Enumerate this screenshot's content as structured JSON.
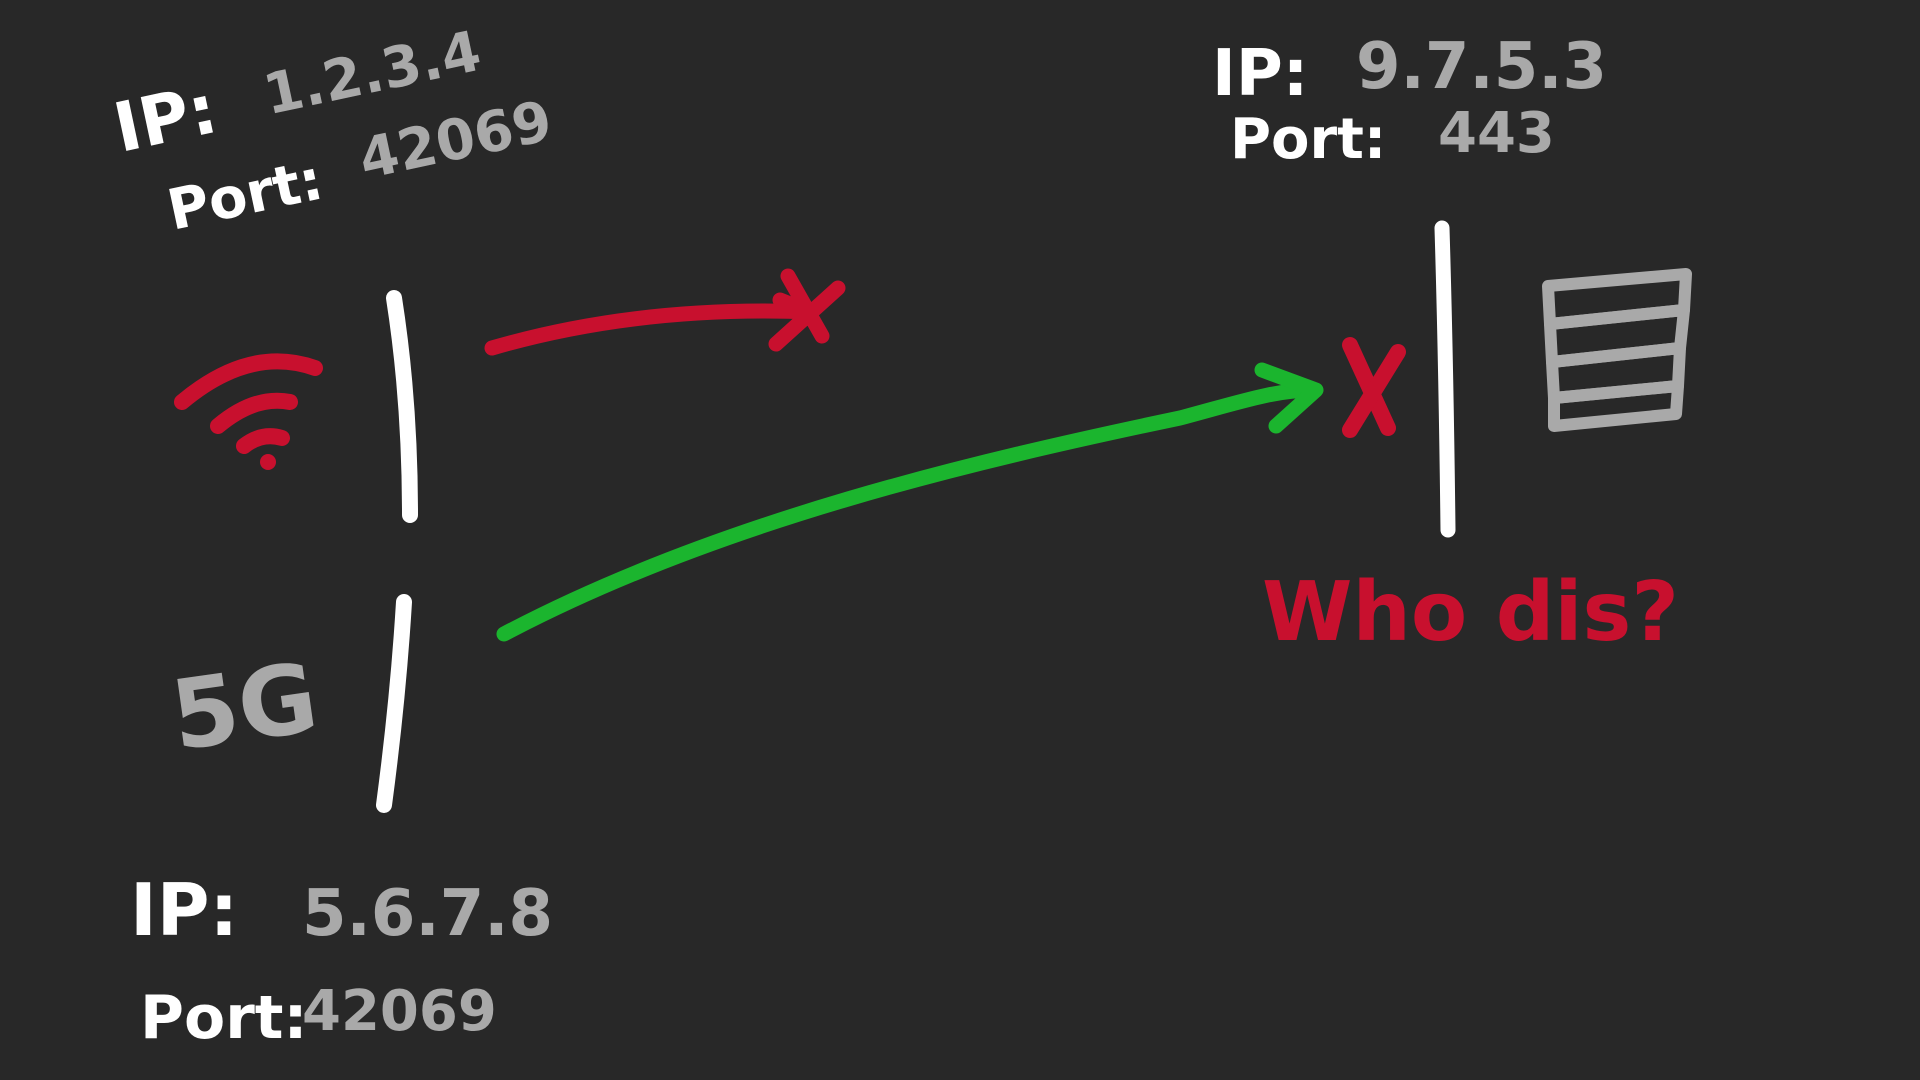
{
  "client_wifi": {
    "ip_label": "IP:",
    "ip_value": "1.2.3.4",
    "port_label": "Port:",
    "port_value": "42069",
    "icon": "wifi-icon"
  },
  "client_5g": {
    "network_label": "5G",
    "ip_label": "IP:",
    "ip_value": "5.6.7.8",
    "port_label": "Port:",
    "port_value": "42069"
  },
  "server": {
    "ip_label": "IP:",
    "ip_value": "9.7.5.3",
    "port_label": "Port:",
    "port_value": "443",
    "icon": "server-icon",
    "reply_text": "Who dis?"
  },
  "colors": {
    "background": "#282828",
    "white": "#ffffff",
    "gray": "#a9a9a9",
    "red": "#c8102e",
    "green": "#1bb52e"
  }
}
